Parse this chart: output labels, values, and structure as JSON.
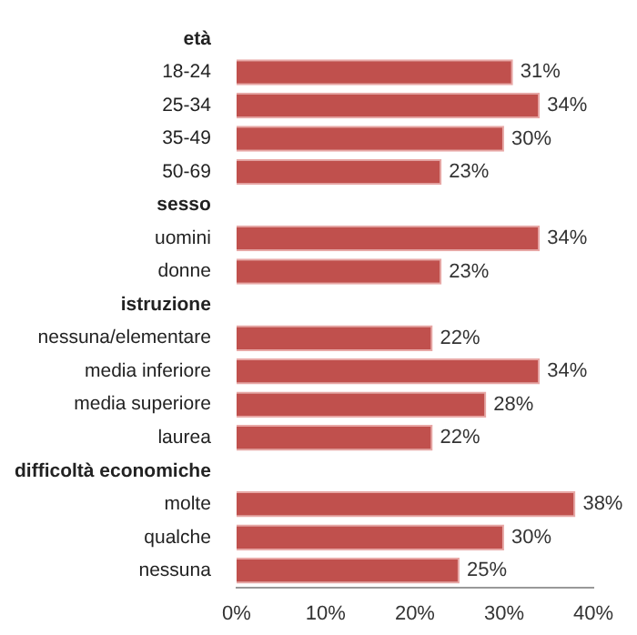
{
  "chart_data": {
    "type": "bar",
    "orientation": "horizontal",
    "categories": [
      "età",
      "18-24",
      "25-34",
      "35-49",
      "50-69",
      "sesso",
      "uomini",
      "donne",
      "istruzione",
      "nessuna/elementare",
      "media inferiore",
      "media superiore",
      "laurea",
      "difficoltà economiche",
      "molte",
      "qualche",
      "nessuna"
    ],
    "values": [
      null,
      31,
      34,
      30,
      23,
      null,
      34,
      23,
      null,
      22,
      34,
      28,
      22,
      null,
      38,
      30,
      25
    ],
    "value_labels": [
      null,
      "31%",
      "34%",
      "30%",
      "23%",
      null,
      "34%",
      "23%",
      null,
      "22%",
      "34%",
      "28%",
      "22%",
      null,
      "38%",
      "30%",
      "25%"
    ],
    "color": "#c0504d",
    "xlim": [
      0,
      40
    ],
    "xticks": [
      {
        "value": 0,
        "label": "0%"
      },
      {
        "value": 10,
        "label": "10%"
      },
      {
        "value": 20,
        "label": "20%"
      },
      {
        "value": 30,
        "label": "30%"
      },
      {
        "value": 40,
        "label": "40%"
      }
    ],
    "grid": false,
    "legend": false
  }
}
